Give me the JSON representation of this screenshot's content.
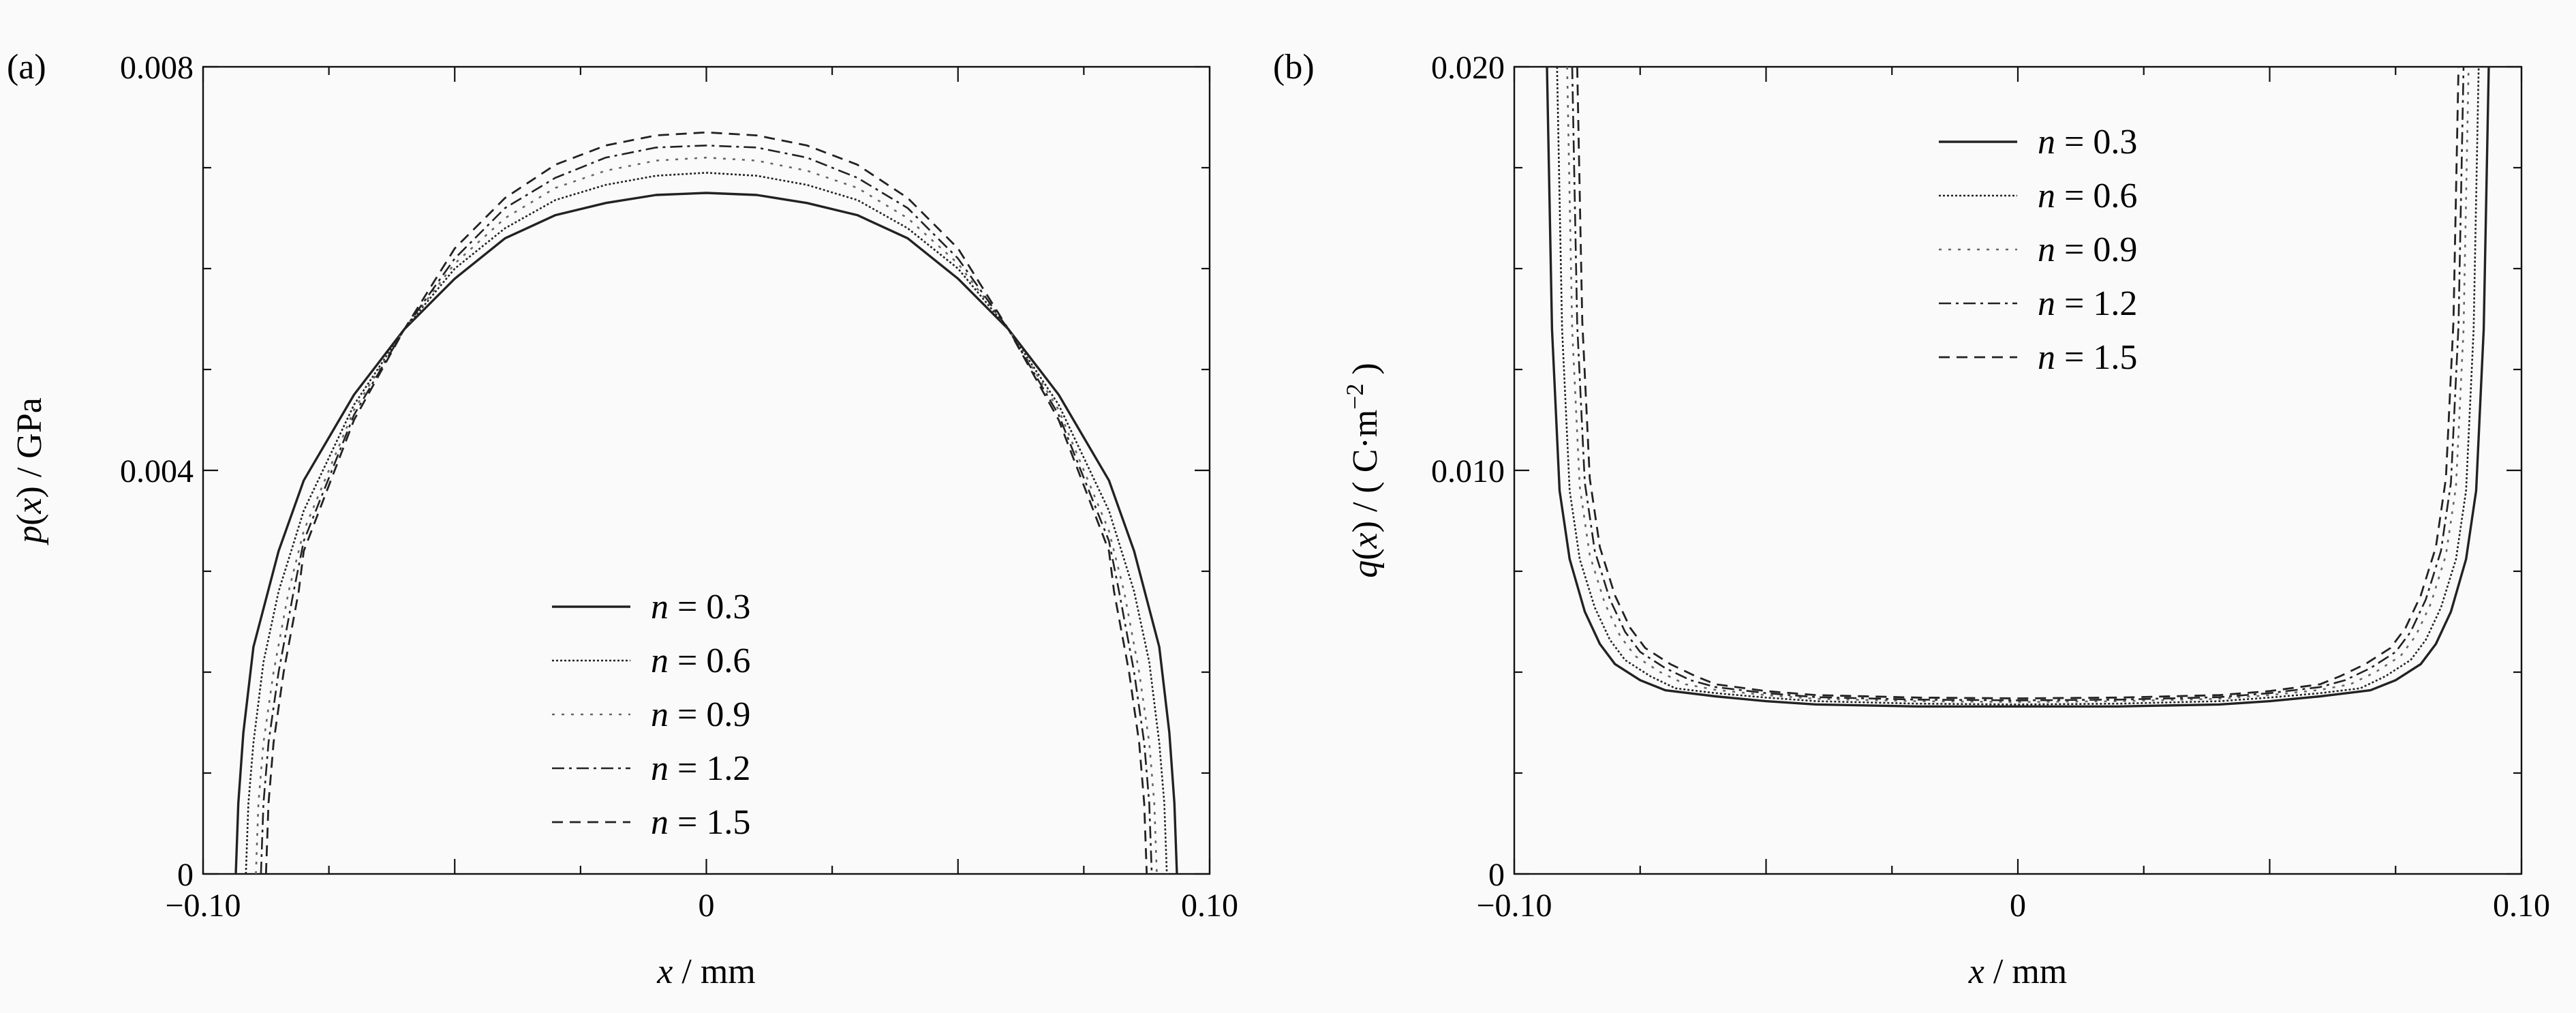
{
  "chart_data": [
    {
      "panel_label": "(a)",
      "type": "line",
      "xlabel": {
        "var": "x",
        "unit": "/ mm"
      },
      "ylabel": {
        "var": "p",
        "arg": "x",
        "unit": "/ GPa"
      },
      "xlim": [
        -0.1,
        0.1
      ],
      "ylim": [
        0,
        0.008
      ],
      "xticks": [
        -0.1,
        0,
        0.1
      ],
      "xtick_labels": [
        "−0.10",
        "0",
        "0.10"
      ],
      "yticks": [
        0,
        0.004,
        0.008
      ],
      "ytick_labels": [
        "0",
        "0.004",
        "0.008"
      ],
      "legend_position": "bottom-center",
      "series": [
        {
          "name": "n = 0.3",
          "n": "0.3",
          "style": "solid",
          "x": [
            -0.0935,
            -0.093,
            -0.092,
            -0.09,
            -0.085,
            -0.08,
            -0.07,
            -0.06,
            -0.05,
            -0.04,
            -0.03,
            -0.02,
            -0.01,
            0,
            0.01,
            0.02,
            0.03,
            0.04,
            0.05,
            0.06,
            0.07,
            0.08,
            0.085,
            0.09,
            0.092,
            0.093,
            0.0935
          ],
          "y": [
            0,
            0.0007,
            0.0014,
            0.00225,
            0.0032,
            0.0039,
            0.00475,
            0.0054,
            0.0059,
            0.0063,
            0.00653,
            0.00665,
            0.00673,
            0.00675,
            0.00673,
            0.00665,
            0.00653,
            0.0063,
            0.0059,
            0.0054,
            0.00475,
            0.0039,
            0.0032,
            0.00225,
            0.0014,
            0.0007,
            0
          ]
        },
        {
          "name": "n = 0.6",
          "n": "0.6",
          "style": "dotted",
          "x": [
            -0.0915,
            -0.091,
            -0.09,
            -0.088,
            -0.085,
            -0.08,
            -0.07,
            -0.06,
            -0.05,
            -0.04,
            -0.03,
            -0.02,
            -0.01,
            0,
            0.01,
            0.02,
            0.03,
            0.04,
            0.05,
            0.06,
            0.07,
            0.08,
            0.085,
            0.088,
            0.09,
            0.091,
            0.0915
          ],
          "y": [
            0,
            0.0007,
            0.0013,
            0.0021,
            0.0028,
            0.0036,
            0.00465,
            0.0054,
            0.006,
            0.0064,
            0.00668,
            0.00683,
            0.00692,
            0.00695,
            0.00692,
            0.00683,
            0.00668,
            0.0064,
            0.006,
            0.0054,
            0.00465,
            0.0036,
            0.0028,
            0.0021,
            0.0013,
            0.0007,
            0
          ]
        },
        {
          "name": "n = 0.9",
          "n": "0.9",
          "style": "dotted-sparse",
          "x": [
            -0.0895,
            -0.089,
            -0.088,
            -0.086,
            -0.083,
            -0.08,
            -0.07,
            -0.06,
            -0.05,
            -0.04,
            -0.03,
            -0.02,
            -0.01,
            0,
            0.01,
            0.02,
            0.03,
            0.04,
            0.05,
            0.06,
            0.07,
            0.08,
            0.083,
            0.086,
            0.088,
            0.089,
            0.0895
          ],
          "y": [
            0,
            0.0007,
            0.0013,
            0.002,
            0.0028,
            0.0034,
            0.0046,
            0.0054,
            0.00605,
            0.0065,
            0.0068,
            0.00697,
            0.00707,
            0.0071,
            0.00707,
            0.00697,
            0.0068,
            0.0065,
            0.00605,
            0.0054,
            0.0046,
            0.0034,
            0.0028,
            0.002,
            0.0013,
            0.0007,
            0
          ]
        },
        {
          "name": "n = 1.2",
          "n": "1.2",
          "style": "dash-dot",
          "x": [
            -0.0885,
            -0.088,
            -0.087,
            -0.085,
            -0.082,
            -0.08,
            -0.07,
            -0.06,
            -0.05,
            -0.04,
            -0.03,
            -0.02,
            -0.01,
            0,
            0.01,
            0.02,
            0.03,
            0.04,
            0.05,
            0.06,
            0.07,
            0.08,
            0.082,
            0.085,
            0.087,
            0.088,
            0.0885
          ],
          "y": [
            0,
            0.0007,
            0.0013,
            0.002,
            0.0028,
            0.0033,
            0.00455,
            0.0054,
            0.0061,
            0.0066,
            0.0069,
            0.0071,
            0.0072,
            0.00722,
            0.0072,
            0.0071,
            0.0069,
            0.0066,
            0.0061,
            0.0054,
            0.00455,
            0.0033,
            0.0028,
            0.002,
            0.0013,
            0.0007,
            0
          ]
        },
        {
          "name": "n = 1.5",
          "n": "1.5",
          "style": "dashed",
          "x": [
            -0.0875,
            -0.087,
            -0.086,
            -0.084,
            -0.081,
            -0.08,
            -0.07,
            -0.06,
            -0.05,
            -0.04,
            -0.03,
            -0.02,
            -0.01,
            0,
            0.01,
            0.02,
            0.03,
            0.04,
            0.05,
            0.06,
            0.07,
            0.08,
            0.081,
            0.084,
            0.086,
            0.087,
            0.0875
          ],
          "y": [
            0,
            0.0007,
            0.0013,
            0.002,
            0.0028,
            0.0032,
            0.0045,
            0.0054,
            0.0062,
            0.0067,
            0.00703,
            0.00722,
            0.00732,
            0.00735,
            0.00732,
            0.00722,
            0.00703,
            0.0067,
            0.0062,
            0.0054,
            0.0045,
            0.0032,
            0.0028,
            0.002,
            0.0013,
            0.0007,
            0
          ]
        }
      ]
    },
    {
      "panel_label": "(b)",
      "type": "line",
      "xlabel": {
        "var": "x",
        "unit": "/ mm"
      },
      "ylabel": {
        "var": "q",
        "arg": "x",
        "unit": "/ ( C·m",
        "exp": "−2",
        "close": ")"
      },
      "xlim": [
        -0.1,
        0.1
      ],
      "ylim": [
        0,
        0.02
      ],
      "xticks": [
        -0.1,
        0,
        0.1
      ],
      "xtick_labels": [
        "−0.10",
        "0",
        "0.10"
      ],
      "yticks": [
        0,
        0.01,
        0.02
      ],
      "ytick_labels": [
        "0",
        "0.010",
        "0.020"
      ],
      "legend_position": "top-center",
      "series": [
        {
          "name": "n = 0.3",
          "n": "0.3",
          "style": "solid",
          "x": [
            -0.0935,
            -0.0925,
            -0.091,
            -0.089,
            -0.086,
            -0.083,
            -0.08,
            -0.075,
            -0.07,
            -0.06,
            -0.05,
            -0.04,
            -0.02,
            0,
            0.02,
            0.04,
            0.05,
            0.06,
            0.07,
            0.075,
            0.08,
            0.083,
            0.086,
            0.089,
            0.091,
            0.0925,
            0.0935
          ],
          "y": [
            0.02,
            0.0135,
            0.0095,
            0.0078,
            0.0065,
            0.0057,
            0.0052,
            0.0048,
            0.00455,
            0.0044,
            0.00428,
            0.0042,
            0.00415,
            0.00415,
            0.00415,
            0.0042,
            0.00428,
            0.0044,
            0.00455,
            0.0048,
            0.0052,
            0.0057,
            0.0065,
            0.0078,
            0.0095,
            0.0135,
            0.02
          ]
        },
        {
          "name": "n = 0.6",
          "n": "0.6",
          "style": "dotted",
          "x": [
            -0.0915,
            -0.0905,
            -0.089,
            -0.087,
            -0.084,
            -0.081,
            -0.078,
            -0.073,
            -0.068,
            -0.06,
            -0.05,
            -0.04,
            -0.02,
            0,
            0.02,
            0.04,
            0.05,
            0.06,
            0.068,
            0.073,
            0.078,
            0.081,
            0.084,
            0.087,
            0.089,
            0.0905,
            0.0915
          ],
          "y": [
            0.02,
            0.0135,
            0.0095,
            0.0078,
            0.0066,
            0.0058,
            0.0053,
            0.0049,
            0.0046,
            0.00448,
            0.00437,
            0.00428,
            0.00422,
            0.0042,
            0.00422,
            0.00428,
            0.00437,
            0.00448,
            0.0046,
            0.0049,
            0.0053,
            0.0058,
            0.0066,
            0.0078,
            0.0095,
            0.0135,
            0.02
          ]
        },
        {
          "name": "n = 0.9",
          "n": "0.9",
          "style": "dotted-sparse",
          "x": [
            -0.0895,
            -0.0885,
            -0.087,
            -0.085,
            -0.082,
            -0.079,
            -0.076,
            -0.071,
            -0.066,
            -0.06,
            -0.05,
            -0.04,
            -0.02,
            0,
            0.02,
            0.04,
            0.05,
            0.06,
            0.066,
            0.071,
            0.076,
            0.079,
            0.082,
            0.085,
            0.087,
            0.0885,
            0.0895
          ],
          "y": [
            0.02,
            0.0135,
            0.0096,
            0.0079,
            0.0067,
            0.0059,
            0.0054,
            0.005,
            0.0047,
            0.00456,
            0.00443,
            0.00434,
            0.00428,
            0.00426,
            0.00428,
            0.00434,
            0.00443,
            0.00456,
            0.0047,
            0.005,
            0.0054,
            0.0059,
            0.0067,
            0.0079,
            0.0096,
            0.0135,
            0.02
          ]
        },
        {
          "name": "n = 1.2",
          "n": "1.2",
          "style": "dash-dot",
          "x": [
            -0.0885,
            -0.0875,
            -0.086,
            -0.084,
            -0.081,
            -0.078,
            -0.075,
            -0.07,
            -0.065,
            -0.06,
            -0.05,
            -0.04,
            -0.02,
            0,
            0.02,
            0.04,
            0.05,
            0.06,
            0.065,
            0.07,
            0.075,
            0.078,
            0.081,
            0.084,
            0.086,
            0.0875,
            0.0885
          ],
          "y": [
            0.02,
            0.0136,
            0.0097,
            0.008,
            0.0068,
            0.006,
            0.0055,
            0.0051,
            0.0048,
            0.00463,
            0.00448,
            0.00438,
            0.00432,
            0.0043,
            0.00432,
            0.00438,
            0.00448,
            0.00463,
            0.0048,
            0.0051,
            0.0055,
            0.006,
            0.0068,
            0.008,
            0.0097,
            0.0136,
            0.02
          ]
        },
        {
          "name": "n = 1.5",
          "n": "1.5",
          "style": "dashed",
          "x": [
            -0.0875,
            -0.0865,
            -0.085,
            -0.083,
            -0.08,
            -0.077,
            -0.074,
            -0.069,
            -0.064,
            -0.06,
            -0.05,
            -0.04,
            -0.02,
            0,
            0.02,
            0.04,
            0.05,
            0.06,
            0.064,
            0.069,
            0.074,
            0.077,
            0.08,
            0.083,
            0.085,
            0.0865,
            0.0875
          ],
          "y": [
            0.02,
            0.0137,
            0.0098,
            0.0081,
            0.0069,
            0.0061,
            0.0056,
            0.0052,
            0.0049,
            0.0047,
            0.00453,
            0.00443,
            0.00437,
            0.00435,
            0.00437,
            0.00443,
            0.00453,
            0.0047,
            0.0049,
            0.0052,
            0.0056,
            0.0061,
            0.0069,
            0.0081,
            0.0098,
            0.0137,
            0.02
          ]
        }
      ]
    }
  ]
}
